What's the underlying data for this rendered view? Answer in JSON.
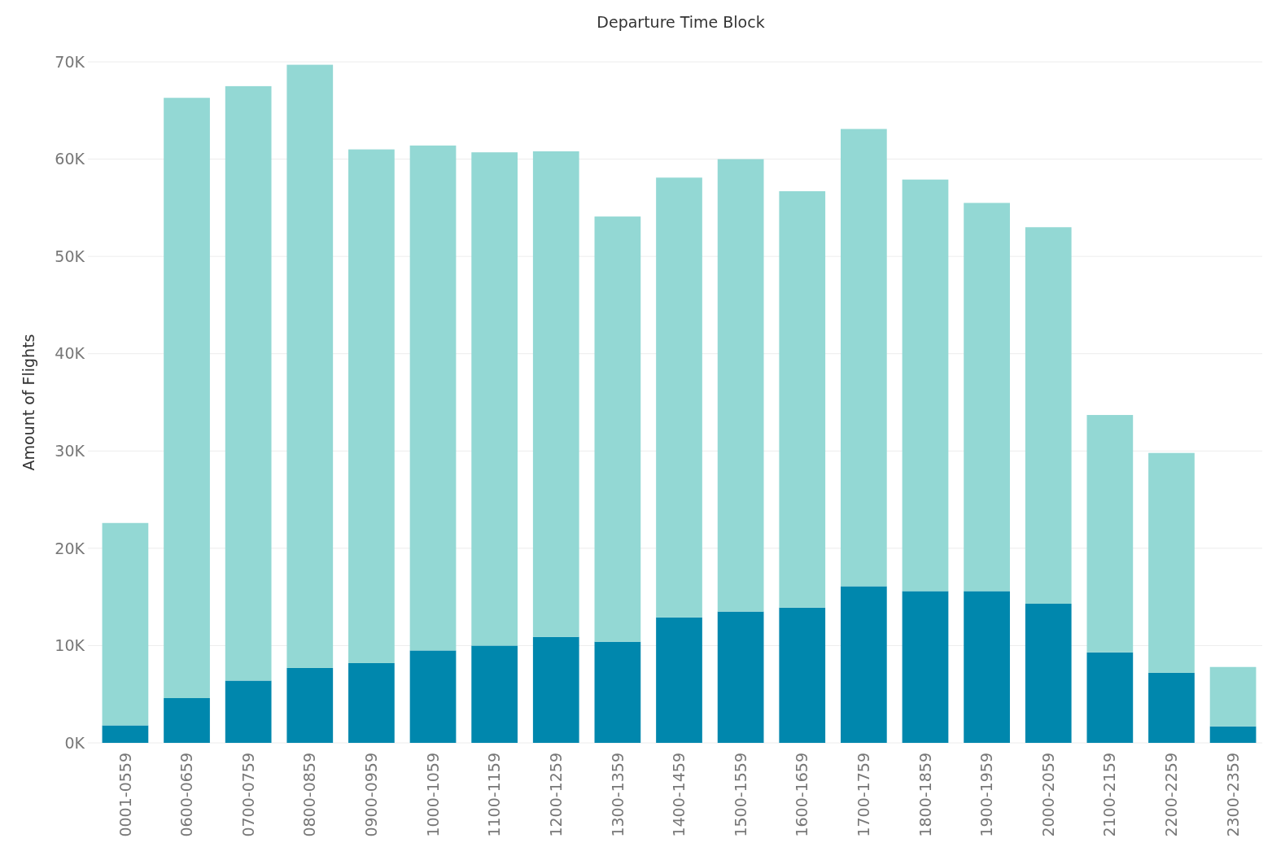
{
  "chart_data": {
    "type": "bar",
    "title": "Departure Time Block",
    "ylabel": "Amount of Flights",
    "stacked": true,
    "grid": "y",
    "categories": [
      "0001-0559",
      "0600-0659",
      "0700-0759",
      "0800-0859",
      "0900-0959",
      "1000-1059",
      "1100-1159",
      "1200-1259",
      "1300-1359",
      "1400-1459",
      "1500-1559",
      "1600-1659",
      "1700-1759",
      "1800-1859",
      "1900-1959",
      "2000-2059",
      "2100-2159",
      "2200-2259",
      "2300-2359"
    ],
    "series": [
      {
        "color": "#0087ad",
        "values": [
          1800,
          4600,
          6400,
          7700,
          8200,
          9500,
          10000,
          10900,
          10400,
          12900,
          13500,
          13900,
          16100,
          15600,
          15600,
          14300,
          9300,
          7200,
          1700
        ]
      },
      {
        "color": "#93d8d4",
        "values": [
          20800,
          61700,
          61100,
          62000,
          52800,
          51900,
          50700,
          49900,
          43700,
          45200,
          46500,
          42800,
          47000,
          42300,
          39900,
          38700,
          24400,
          22600,
          6100
        ]
      }
    ],
    "ylim": [
      0,
      70000
    ],
    "yticks": [
      {
        "value": 0,
        "label": "0K"
      },
      {
        "value": 10000,
        "label": "10K"
      },
      {
        "value": 20000,
        "label": "20K"
      },
      {
        "value": 30000,
        "label": "30K"
      },
      {
        "value": 40000,
        "label": "40K"
      },
      {
        "value": 50000,
        "label": "50K"
      },
      {
        "value": 60000,
        "label": "60K"
      },
      {
        "value": 70000,
        "label": "70K"
      }
    ]
  }
}
